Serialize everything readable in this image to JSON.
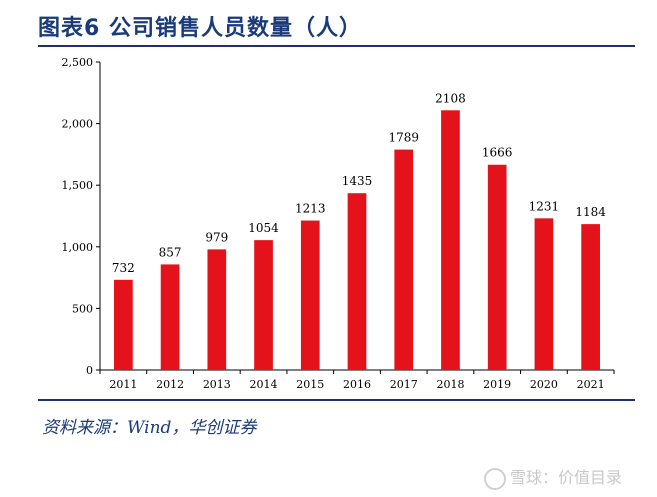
{
  "title": "图表6 公司销售人员数量（人）",
  "source": "资料来源：Wind，华创证券",
  "watermark": "雪球：价值目录",
  "colors": {
    "bar": "#e3121b",
    "title": "#1a3a7a",
    "rule": "#1f2f6f"
  },
  "chart_data": {
    "type": "bar",
    "title": "公司销售人员数量（人）",
    "xlabel": "",
    "ylabel": "",
    "categories": [
      "2011",
      "2012",
      "2013",
      "2014",
      "2015",
      "2016",
      "2017",
      "2018",
      "2019",
      "2020",
      "2021"
    ],
    "values": [
      732,
      857,
      979,
      1054,
      1213,
      1435,
      1789,
      2108,
      1666,
      1231,
      1184
    ],
    "data_labels": [
      "732",
      "857",
      "979",
      "1054",
      "1213",
      "1435",
      "1789",
      "2108",
      "1666",
      "1231",
      "1184"
    ],
    "ylim": [
      0,
      2500
    ],
    "yticks": [
      0,
      500,
      1000,
      1500,
      2000,
      2500
    ],
    "ytick_labels": [
      "0",
      "500",
      "1,000",
      "1,500",
      "2,000",
      "2,500"
    ],
    "grid": false
  }
}
